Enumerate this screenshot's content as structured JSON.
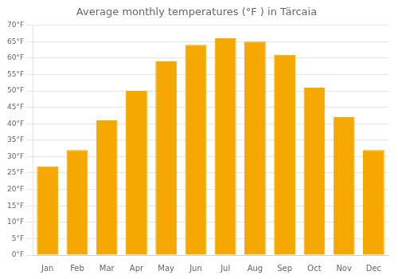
{
  "chart_data": {
    "type": "bar",
    "title": "Average monthly temperatures (°F ) in Tärcaia",
    "categories": [
      "Jan",
      "Feb",
      "Mar",
      "Apr",
      "May",
      "Jun",
      "Jul",
      "Aug",
      "Sep",
      "Oct",
      "Nov",
      "Dec"
    ],
    "values": [
      27,
      32,
      41,
      50,
      59,
      64,
      66,
      65,
      61,
      51,
      42,
      32
    ],
    "color": "#F5A800",
    "ylim": [
      0,
      70
    ],
    "yticks": [
      {
        "value": 0,
        "label": "0°F"
      },
      {
        "value": 5,
        "label": "5°F"
      },
      {
        "value": 10,
        "label": "10°F"
      },
      {
        "value": 15,
        "label": "15°F"
      },
      {
        "value": 20,
        "label": "20°F"
      },
      {
        "value": 25,
        "label": "25°F"
      },
      {
        "value": 30,
        "label": "30°F"
      },
      {
        "value": 35,
        "label": "35°F"
      },
      {
        "value": 40,
        "label": "40°F"
      },
      {
        "value": 45,
        "label": "45°F"
      },
      {
        "value": 50,
        "label": "50°F"
      },
      {
        "value": 55,
        "label": "55°F"
      },
      {
        "value": 60,
        "label": "60°F"
      },
      {
        "value": 65,
        "label": "65°F"
      },
      {
        "value": 70,
        "label": "70°F"
      }
    ],
    "grid": true
  }
}
